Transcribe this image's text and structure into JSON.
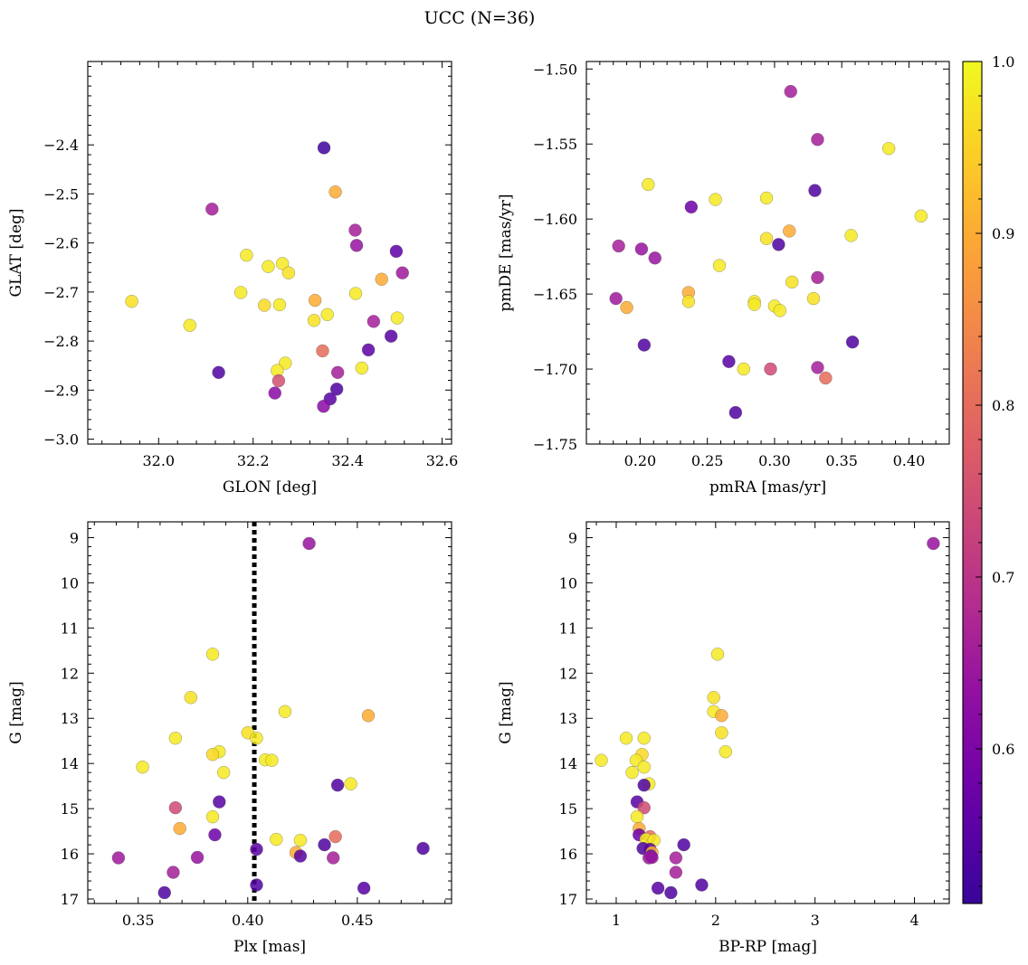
{
  "figure": {
    "title": "UCC (N=36)"
  },
  "colorbar": {
    "min": 0.51,
    "max": 1.0,
    "ticks": [
      0.6,
      0.7,
      0.8,
      0.9,
      1.0
    ],
    "tick_labels": [
      "0.6",
      "0.7",
      "0.8",
      "0.9",
      "1.0"
    ],
    "colormap": "plasma"
  },
  "chart_data": [
    {
      "type": "scatter",
      "id": "glon-glat",
      "xlabel": "GLON [deg]",
      "ylabel": "GLAT [deg]",
      "xlim": [
        31.85,
        32.62
      ],
      "ylim": [
        -3.01,
        -2.23
      ],
      "y_inverted": false,
      "xticks": [
        32.0,
        32.2,
        32.4,
        32.6
      ],
      "xtick_labels": [
        "32.0",
        "32.2",
        "32.4",
        "32.6"
      ],
      "yticks": [
        -2.4,
        -2.5,
        -2.6,
        -2.7,
        -2.8,
        -2.9,
        -3.0
      ],
      "ytick_labels": [
        "−2.4",
        "−2.5",
        "−2.6",
        "−2.7",
        "−2.8",
        "−2.9",
        "−3.0"
      ],
      "vline": null,
      "points": [
        {
          "x": 32.35,
          "y": -2.406,
          "c": 0.52
        },
        {
          "x": 32.374,
          "y": -2.496,
          "c": 0.9
        },
        {
          "x": 32.113,
          "y": -2.531,
          "c": 0.66
        },
        {
          "x": 32.416,
          "y": -2.574,
          "c": 0.66
        },
        {
          "x": 32.419,
          "y": -2.605,
          "c": 0.64
        },
        {
          "x": 32.503,
          "y": -2.617,
          "c": 0.56
        },
        {
          "x": 32.186,
          "y": -2.625,
          "c": 0.98
        },
        {
          "x": 32.262,
          "y": -2.642,
          "c": 0.98
        },
        {
          "x": 32.232,
          "y": -2.648,
          "c": 0.98
        },
        {
          "x": 32.275,
          "y": -2.661,
          "c": 0.97
        },
        {
          "x": 32.516,
          "y": -2.661,
          "c": 0.65
        },
        {
          "x": 32.472,
          "y": -2.674,
          "c": 0.9
        },
        {
          "x": 31.943,
          "y": -2.719,
          "c": 0.97
        },
        {
          "x": 32.174,
          "y": -2.701,
          "c": 0.98
        },
        {
          "x": 32.417,
          "y": -2.703,
          "c": 0.98
        },
        {
          "x": 32.331,
          "y": -2.717,
          "c": 0.9
        },
        {
          "x": 32.224,
          "y": -2.727,
          "c": 0.96
        },
        {
          "x": 32.256,
          "y": -2.726,
          "c": 0.98
        },
        {
          "x": 32.357,
          "y": -2.746,
          "c": 0.98
        },
        {
          "x": 32.329,
          "y": -2.758,
          "c": 0.97
        },
        {
          "x": 32.505,
          "y": -2.753,
          "c": 0.98
        },
        {
          "x": 32.455,
          "y": -2.76,
          "c": 0.66
        },
        {
          "x": 32.066,
          "y": -2.768,
          "c": 0.98
        },
        {
          "x": 32.492,
          "y": -2.79,
          "c": 0.55
        },
        {
          "x": 32.347,
          "y": -2.82,
          "c": 0.8
        },
        {
          "x": 32.444,
          "y": -2.818,
          "c": 0.56
        },
        {
          "x": 32.268,
          "y": -2.845,
          "c": 0.98
        },
        {
          "x": 32.43,
          "y": -2.855,
          "c": 0.98
        },
        {
          "x": 32.127,
          "y": -2.864,
          "c": 0.54
        },
        {
          "x": 32.251,
          "y": -2.86,
          "c": 0.98
        },
        {
          "x": 32.379,
          "y": -2.864,
          "c": 0.66
        },
        {
          "x": 32.254,
          "y": -2.881,
          "c": 0.75
        },
        {
          "x": 32.377,
          "y": -2.898,
          "c": 0.54
        },
        {
          "x": 32.246,
          "y": -2.906,
          "c": 0.62
        },
        {
          "x": 32.363,
          "y": -2.918,
          "c": 0.55
        },
        {
          "x": 32.349,
          "y": -2.933,
          "c": 0.62
        }
      ]
    },
    {
      "type": "scatter",
      "id": "pm",
      "xlabel": "pmRA [mas/yr]",
      "ylabel": "pmDE [mas/yr]",
      "xlim": [
        0.16,
        0.43
      ],
      "ylim": [
        -1.75,
        -1.495
      ],
      "y_inverted": false,
      "xticks": [
        0.2,
        0.25,
        0.3,
        0.35,
        0.4
      ],
      "xtick_labels": [
        "0.20",
        "0.25",
        "0.30",
        "0.35",
        "0.40"
      ],
      "yticks": [
        -1.5,
        -1.55,
        -1.6,
        -1.65,
        -1.7,
        -1.75
      ],
      "ytick_labels": [
        "−1.50",
        "−1.55",
        "−1.60",
        "−1.65",
        "−1.70",
        "−1.75"
      ],
      "vline": null,
      "points": [
        {
          "x": 0.312,
          "y": -1.515,
          "c": 0.66
        },
        {
          "x": 0.332,
          "y": -1.547,
          "c": 0.66
        },
        {
          "x": 0.385,
          "y": -1.553,
          "c": 0.98
        },
        {
          "x": 0.206,
          "y": -1.577,
          "c": 0.98
        },
        {
          "x": 0.33,
          "y": -1.581,
          "c": 0.54
        },
        {
          "x": 0.294,
          "y": -1.586,
          "c": 0.98
        },
        {
          "x": 0.256,
          "y": -1.587,
          "c": 0.98
        },
        {
          "x": 0.238,
          "y": -1.592,
          "c": 0.58
        },
        {
          "x": 0.409,
          "y": -1.598,
          "c": 0.98
        },
        {
          "x": 0.311,
          "y": -1.608,
          "c": 0.9
        },
        {
          "x": 0.357,
          "y": -1.611,
          "c": 0.98
        },
        {
          "x": 0.294,
          "y": -1.613,
          "c": 0.97
        },
        {
          "x": 0.303,
          "y": -1.617,
          "c": 0.54
        },
        {
          "x": 0.184,
          "y": -1.618,
          "c": 0.66
        },
        {
          "x": 0.201,
          "y": -1.62,
          "c": 0.64
        },
        {
          "x": 0.211,
          "y": -1.626,
          "c": 0.64
        },
        {
          "x": 0.259,
          "y": -1.631,
          "c": 0.98
        },
        {
          "x": 0.332,
          "y": -1.639,
          "c": 0.66
        },
        {
          "x": 0.313,
          "y": -1.642,
          "c": 0.97
        },
        {
          "x": 0.236,
          "y": -1.649,
          "c": 0.9
        },
        {
          "x": 0.182,
          "y": -1.653,
          "c": 0.65
        },
        {
          "x": 0.329,
          "y": -1.653,
          "c": 0.97
        },
        {
          "x": 0.236,
          "y": -1.655,
          "c": 0.97
        },
        {
          "x": 0.285,
          "y": -1.655,
          "c": 0.98
        },
        {
          "x": 0.285,
          "y": -1.657,
          "c": 0.98
        },
        {
          "x": 0.3,
          "y": -1.658,
          "c": 0.98
        },
        {
          "x": 0.19,
          "y": -1.659,
          "c": 0.9
        },
        {
          "x": 0.304,
          "y": -1.661,
          "c": 0.98
        },
        {
          "x": 0.358,
          "y": -1.682,
          "c": 0.54
        },
        {
          "x": 0.203,
          "y": -1.684,
          "c": 0.54
        },
        {
          "x": 0.266,
          "y": -1.695,
          "c": 0.55
        },
        {
          "x": 0.277,
          "y": -1.7,
          "c": 0.98
        },
        {
          "x": 0.297,
          "y": -1.7,
          "c": 0.74
        },
        {
          "x": 0.332,
          "y": -1.699,
          "c": 0.66
        },
        {
          "x": 0.338,
          "y": -1.706,
          "c": 0.8
        },
        {
          "x": 0.271,
          "y": -1.729,
          "c": 0.54
        }
      ]
    },
    {
      "type": "scatter",
      "id": "plx-g",
      "xlabel": "Plx [mas]",
      "ylabel": "G [mag]",
      "xlim": [
        0.327,
        0.493
      ],
      "ylim": [
        17.1,
        8.65
      ],
      "y_inverted": true,
      "xticks": [
        0.35,
        0.4,
        0.45
      ],
      "xtick_labels": [
        "0.35",
        "0.40",
        "0.45"
      ],
      "yticks": [
        9,
        10,
        11,
        12,
        13,
        14,
        15,
        16,
        17
      ],
      "ytick_labels": [
        "9",
        "10",
        "11",
        "12",
        "13",
        "14",
        "15",
        "16",
        "17"
      ],
      "vline": 0.403,
      "points": [
        {
          "x": 0.428,
          "y": 9.13,
          "c": 0.64
        },
        {
          "x": 0.384,
          "y": 11.58,
          "c": 0.98
        },
        {
          "x": 0.374,
          "y": 12.54,
          "c": 0.97
        },
        {
          "x": 0.417,
          "y": 12.85,
          "c": 0.98
        },
        {
          "x": 0.455,
          "y": 12.94,
          "c": 0.9
        },
        {
          "x": 0.4,
          "y": 13.32,
          "c": 0.97
        },
        {
          "x": 0.404,
          "y": 13.44,
          "c": 0.98
        },
        {
          "x": 0.367,
          "y": 13.44,
          "c": 0.98
        },
        {
          "x": 0.387,
          "y": 13.74,
          "c": 0.98
        },
        {
          "x": 0.384,
          "y": 13.8,
          "c": 0.96
        },
        {
          "x": 0.408,
          "y": 13.92,
          "c": 0.98
        },
        {
          "x": 0.411,
          "y": 13.93,
          "c": 0.98
        },
        {
          "x": 0.352,
          "y": 14.08,
          "c": 0.98
        },
        {
          "x": 0.389,
          "y": 14.2,
          "c": 0.98
        },
        {
          "x": 0.447,
          "y": 14.45,
          "c": 0.98
        },
        {
          "x": 0.441,
          "y": 14.48,
          "c": 0.54
        },
        {
          "x": 0.387,
          "y": 14.85,
          "c": 0.55
        },
        {
          "x": 0.367,
          "y": 14.98,
          "c": 0.74
        },
        {
          "x": 0.384,
          "y": 15.18,
          "c": 0.98
        },
        {
          "x": 0.369,
          "y": 15.44,
          "c": 0.9
        },
        {
          "x": 0.385,
          "y": 15.58,
          "c": 0.58
        },
        {
          "x": 0.44,
          "y": 15.62,
          "c": 0.8
        },
        {
          "x": 0.413,
          "y": 15.68,
          "c": 0.98
        },
        {
          "x": 0.424,
          "y": 15.7,
          "c": 0.98
        },
        {
          "x": 0.435,
          "y": 15.8,
          "c": 0.54
        },
        {
          "x": 0.48,
          "y": 15.88,
          "c": 0.54
        },
        {
          "x": 0.404,
          "y": 15.9,
          "c": 0.55
        },
        {
          "x": 0.422,
          "y": 15.97,
          "c": 0.9
        },
        {
          "x": 0.424,
          "y": 16.05,
          "c": 0.55
        },
        {
          "x": 0.341,
          "y": 16.09,
          "c": 0.65
        },
        {
          "x": 0.377,
          "y": 16.08,
          "c": 0.64
        },
        {
          "x": 0.439,
          "y": 16.09,
          "c": 0.66
        },
        {
          "x": 0.366,
          "y": 16.41,
          "c": 0.66
        },
        {
          "x": 0.404,
          "y": 16.69,
          "c": 0.54
        },
        {
          "x": 0.453,
          "y": 16.76,
          "c": 0.55
        },
        {
          "x": 0.362,
          "y": 16.86,
          "c": 0.54
        }
      ]
    },
    {
      "type": "scatter",
      "id": "cmd",
      "xlabel": "BP-RP [mag]",
      "ylabel": "G [mag]",
      "xlim": [
        0.7,
        4.35
      ],
      "ylim": [
        17.1,
        8.65
      ],
      "y_inverted": true,
      "xticks": [
        1,
        2,
        3,
        4
      ],
      "xtick_labels": [
        "1",
        "2",
        "3",
        "4"
      ],
      "yticks": [
        9,
        10,
        11,
        12,
        13,
        14,
        15,
        16,
        17
      ],
      "ytick_labels": [
        "9",
        "10",
        "11",
        "12",
        "13",
        "14",
        "15",
        "16",
        "17"
      ],
      "vline": null,
      "points": [
        {
          "x": 4.19,
          "y": 9.13,
          "c": 0.64
        },
        {
          "x": 2.02,
          "y": 11.58,
          "c": 0.98
        },
        {
          "x": 1.98,
          "y": 12.54,
          "c": 0.97
        },
        {
          "x": 1.98,
          "y": 12.85,
          "c": 0.98
        },
        {
          "x": 2.06,
          "y": 12.94,
          "c": 0.9
        },
        {
          "x": 2.06,
          "y": 13.32,
          "c": 0.97
        },
        {
          "x": 1.1,
          "y": 13.44,
          "c": 0.98
        },
        {
          "x": 1.28,
          "y": 13.44,
          "c": 0.98
        },
        {
          "x": 2.1,
          "y": 13.74,
          "c": 0.98
        },
        {
          "x": 1.26,
          "y": 13.8,
          "c": 0.96
        },
        {
          "x": 0.85,
          "y": 13.93,
          "c": 0.98
        },
        {
          "x": 1.2,
          "y": 13.93,
          "c": 0.98
        },
        {
          "x": 1.28,
          "y": 14.08,
          "c": 0.98
        },
        {
          "x": 1.16,
          "y": 14.2,
          "c": 0.98
        },
        {
          "x": 1.33,
          "y": 14.45,
          "c": 0.98
        },
        {
          "x": 1.28,
          "y": 14.48,
          "c": 0.54
        },
        {
          "x": 1.21,
          "y": 14.85,
          "c": 0.55
        },
        {
          "x": 1.28,
          "y": 14.98,
          "c": 0.74
        },
        {
          "x": 1.21,
          "y": 15.18,
          "c": 0.98
        },
        {
          "x": 1.23,
          "y": 15.44,
          "c": 0.9
        },
        {
          "x": 1.23,
          "y": 15.58,
          "c": 0.58
        },
        {
          "x": 1.34,
          "y": 15.62,
          "c": 0.8
        },
        {
          "x": 1.3,
          "y": 15.68,
          "c": 0.98
        },
        {
          "x": 1.38,
          "y": 15.7,
          "c": 0.98
        },
        {
          "x": 1.68,
          "y": 15.8,
          "c": 0.54
        },
        {
          "x": 1.27,
          "y": 15.88,
          "c": 0.54
        },
        {
          "x": 1.34,
          "y": 15.9,
          "c": 0.55
        },
        {
          "x": 1.36,
          "y": 15.97,
          "c": 0.9
        },
        {
          "x": 1.35,
          "y": 16.05,
          "c": 0.55
        },
        {
          "x": 1.33,
          "y": 16.09,
          "c": 0.65
        },
        {
          "x": 1.36,
          "y": 16.08,
          "c": 0.64
        },
        {
          "x": 1.6,
          "y": 16.09,
          "c": 0.66
        },
        {
          "x": 1.6,
          "y": 16.41,
          "c": 0.66
        },
        {
          "x": 1.86,
          "y": 16.69,
          "c": 0.54
        },
        {
          "x": 1.42,
          "y": 16.76,
          "c": 0.55
        },
        {
          "x": 1.55,
          "y": 16.86,
          "c": 0.54
        }
      ]
    }
  ]
}
